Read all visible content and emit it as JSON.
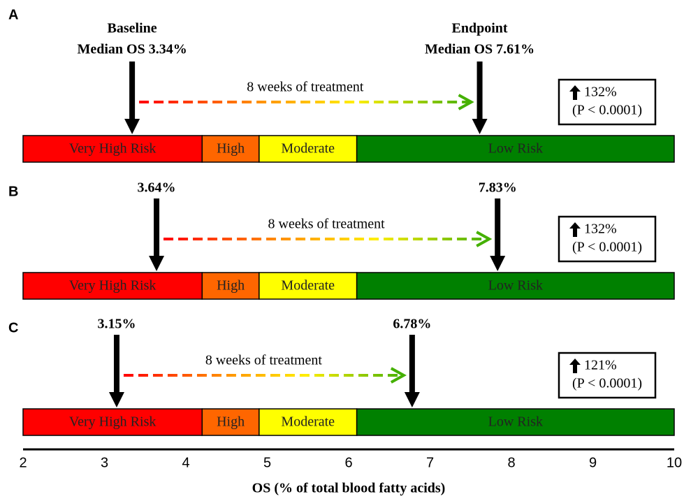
{
  "chart_data": {
    "type": "risk-bar",
    "xlabel": "OS (% of total blood fatty acids)",
    "xlim": [
      2,
      10
    ],
    "xticks": [
      2,
      3,
      4,
      5,
      6,
      7,
      8,
      9,
      10
    ],
    "zones": [
      {
        "label": "Very High Risk",
        "from": 2,
        "to": 4.2,
        "color": "#ff0000"
      },
      {
        "label": "High",
        "from": 4.2,
        "to": 4.9,
        "color": "#ff6600"
      },
      {
        "label": "Moderate",
        "from": 4.9,
        "to": 6.1,
        "color": "#ffff00"
      },
      {
        "label": "Low Risk",
        "from": 6.1,
        "to": 10,
        "color": "#008000"
      }
    ],
    "panels": [
      {
        "label": "A",
        "baseline_title": "Baseline",
        "baseline": 3.34,
        "baseline_label": "Median OS  3.34%",
        "endpoint_title": "Endpoint",
        "endpoint": 7.61,
        "endpoint_label": "Median OS  7.61%",
        "arrow_label": "8 weeks of treatment",
        "change": 132,
        "change_label": "132%",
        "p_label": "(P < 0.0001)"
      },
      {
        "label": "B",
        "baseline": 3.64,
        "baseline_label": "3.64%",
        "endpoint": 7.83,
        "endpoint_label": "7.83%",
        "arrow_label": "8 weeks of treatment",
        "change": 132,
        "change_label": "132%",
        "p_label": "(P < 0.0001)"
      },
      {
        "label": "C",
        "baseline": 3.15,
        "baseline_label": "3.15%",
        "endpoint": 6.78,
        "endpoint_label": "6.78%",
        "arrow_label": "8 weeks of treatment",
        "change": 121,
        "change_label": "121%",
        "p_label": "(P < 0.0001)"
      }
    ]
  }
}
